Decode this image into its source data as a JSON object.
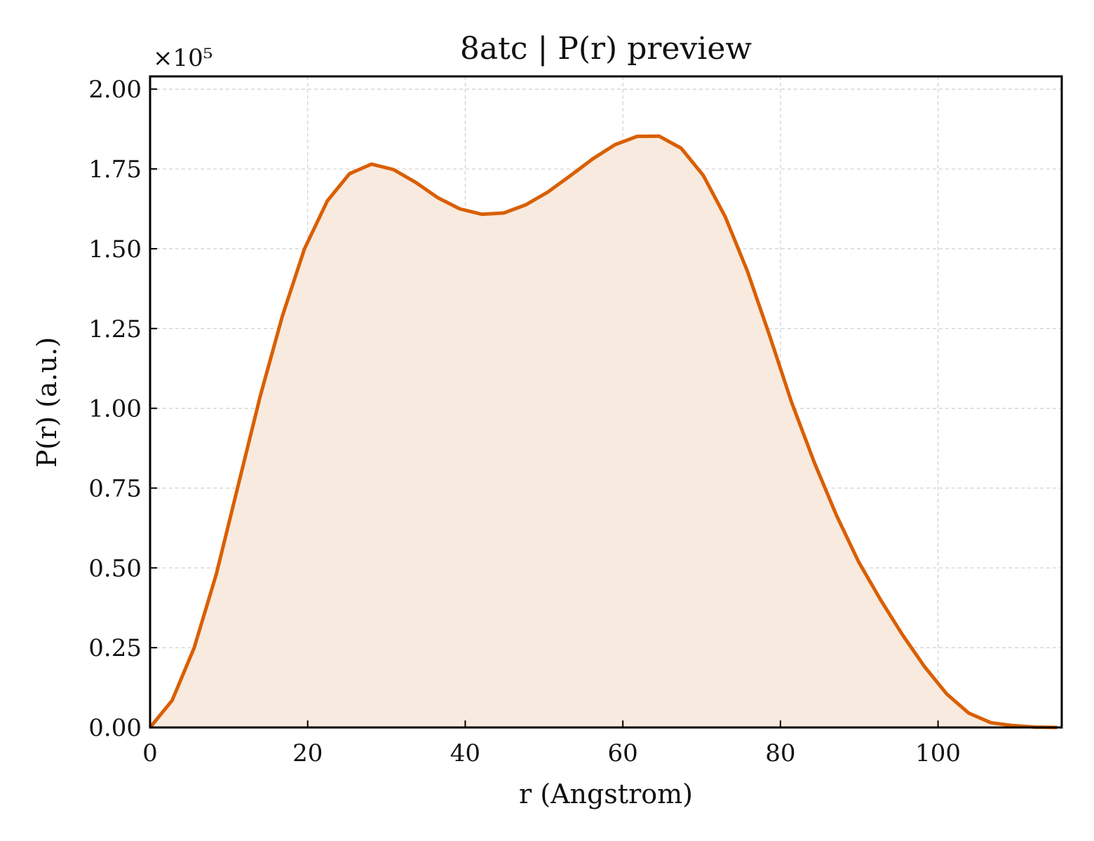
{
  "chart_data": {
    "type": "area",
    "title": "8atc | P(r) preview",
    "xlabel": "r (Angstrom)",
    "ylabel": "P(r) (a.u.)",
    "y_multiplier_label": "×10⁵",
    "xlim": [
      0,
      115.7
    ],
    "ylim": [
      0,
      2.04
    ],
    "x_ticks": [
      0,
      20,
      40,
      60,
      80,
      100
    ],
    "x_tick_labels": [
      "0",
      "20",
      "40",
      "60",
      "80",
      "100"
    ],
    "y_ticks": [
      0,
      0.25,
      0.5,
      0.75,
      1.0,
      1.25,
      1.5,
      1.75,
      2.0
    ],
    "y_tick_labels": [
      "0.00",
      "0.25",
      "0.50",
      "0.75",
      "1.00",
      "1.25",
      "1.50",
      "1.75",
      "2.00"
    ],
    "grid": true,
    "series": [
      {
        "color": "#d95f02",
        "fill_color": "#f8eade",
        "x": [
          0,
          2.8,
          5.6,
          8.4,
          11.2,
          14.0,
          16.8,
          19.6,
          22.5,
          25.3,
          28.1,
          30.9,
          33.7,
          36.5,
          39.3,
          42.1,
          44.9,
          47.7,
          50.5,
          53.4,
          56.2,
          59.0,
          61.8,
          64.6,
          67.4,
          70.2,
          73.0,
          75.8,
          78.6,
          81.4,
          84.3,
          87.1,
          89.9,
          92.7,
          95.5,
          98.3,
          101.1,
          103.9,
          106.7,
          109.5,
          112.3,
          115.1
        ],
        "y": [
          0.0,
          0.085,
          0.25,
          0.48,
          0.76,
          1.04,
          1.29,
          1.5,
          1.65,
          1.735,
          1.765,
          1.748,
          1.708,
          1.66,
          1.625,
          1.608,
          1.612,
          1.638,
          1.678,
          1.73,
          1.782,
          1.826,
          1.852,
          1.853,
          1.815,
          1.73,
          1.6,
          1.43,
          1.23,
          1.02,
          0.83,
          0.665,
          0.52,
          0.4,
          0.29,
          0.19,
          0.105,
          0.045,
          0.015,
          0.006,
          0.001,
          0.0
        ]
      }
    ]
  }
}
